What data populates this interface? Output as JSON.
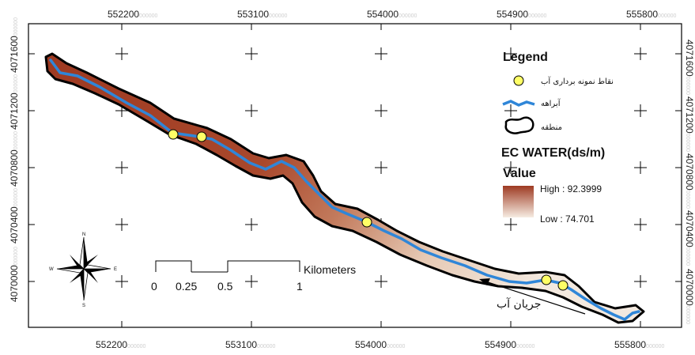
{
  "map": {
    "x_ticks": [
      "552200",
      "553100",
      "554000",
      "554900",
      "555800"
    ],
    "y_ticks": [
      "4071600",
      "4071200",
      "4070800",
      "4070400",
      "4070000"
    ],
    "tick_suffix": "000000",
    "colors": {
      "frame": "#000000",
      "grid_cross": "#000000",
      "river": "#2f86d8",
      "high": "#9e3a22",
      "low": "#f2e6da",
      "sample_point": "#ffff66"
    }
  },
  "legend": {
    "title": "Legend",
    "sample_points_label": "نقاط نمونه برداری آب",
    "river_label": "آبراهه",
    "area_label": "منطقه",
    "layer_title": "EC WATER(ds/m)",
    "value_label": "Value",
    "high_label": "High : 92.3999",
    "low_label": "Low : 74.701"
  },
  "scale_bar": {
    "unit": "Kilometers",
    "labels": [
      "0",
      "0.25",
      "0.5",
      "1"
    ]
  },
  "flow_label": "جریان آب",
  "north_arrow": {
    "n": "N",
    "s": "S",
    "e": "E",
    "w": "W"
  }
}
